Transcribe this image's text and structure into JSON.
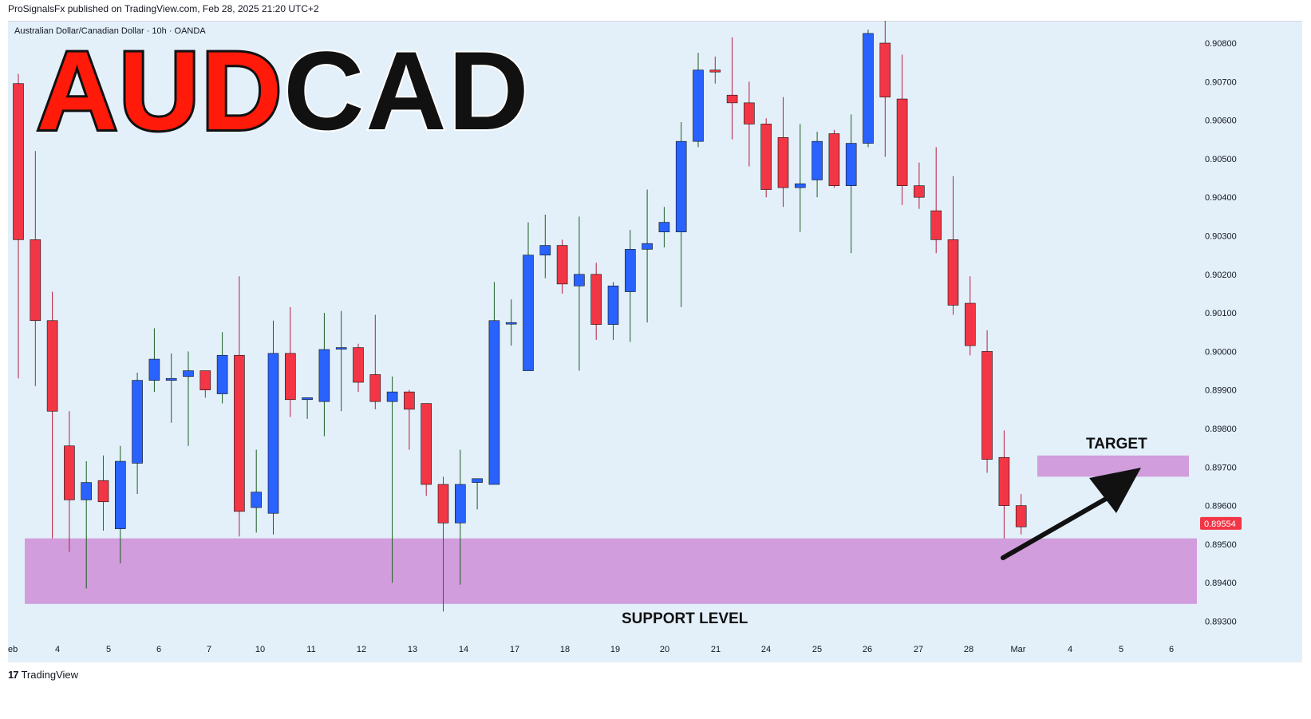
{
  "header": {
    "published_line": "ProSignalsFx published on TradingView.com, Feb 28, 2025 21:20 UTC+2"
  },
  "symbol": {
    "description": "Australian Dollar/Canadian Dollar · 10h · OANDA"
  },
  "title": {
    "part1": "AUD",
    "part2": "CAD"
  },
  "annotations": {
    "target_label": "TARGET",
    "support_label": "SUPPORT LEVEL"
  },
  "footer": {
    "logo": "17",
    "brand": "TradingView"
  },
  "colors": {
    "bull": "#2962ff",
    "bear": "#f23645",
    "zone": "#ce93d8",
    "background": "#e3f0fa",
    "title_red": "#ff1a0a"
  },
  "chart_data": {
    "type": "candlestick",
    "timeframe": "10h",
    "ylim": [
      0.8928,
      0.909
    ],
    "y_ticks": [
      "0.90800",
      "0.90700",
      "0.90600",
      "0.90500",
      "0.90400",
      "0.90300",
      "0.90200",
      "0.90100",
      "0.90000",
      "0.89900",
      "0.89800",
      "0.89700",
      "0.89600",
      "0.89500",
      "0.89400",
      "0.89300"
    ],
    "x_ticks": [
      "eb",
      "4",
      "5",
      "6",
      "7",
      "10",
      "11",
      "12",
      "13",
      "14",
      "17",
      "18",
      "19",
      "20",
      "21",
      "24",
      "25",
      "26",
      "27",
      "28",
      "Mar",
      "4",
      "5",
      "6"
    ],
    "last_price": "0.89554",
    "candles": [
      {
        "o": 0.90695,
        "h": 0.9072,
        "l": 0.8993,
        "c": 0.9029
      },
      {
        "o": 0.9029,
        "h": 0.9052,
        "l": 0.8991,
        "c": 0.9008
      },
      {
        "o": 0.9008,
        "h": 0.90155,
        "l": 0.89515,
        "c": 0.89845
      },
      {
        "o": 0.89755,
        "h": 0.89845,
        "l": 0.8948,
        "c": 0.89615
      },
      {
        "o": 0.89615,
        "h": 0.89715,
        "l": 0.89385,
        "c": 0.8966
      },
      {
        "o": 0.89665,
        "h": 0.8973,
        "l": 0.89535,
        "c": 0.8961
      },
      {
        "o": 0.8954,
        "h": 0.89755,
        "l": 0.8945,
        "c": 0.89715
      },
      {
        "o": 0.8971,
        "h": 0.89945,
        "l": 0.8963,
        "c": 0.89925
      },
      {
        "o": 0.89925,
        "h": 0.9006,
        "l": 0.89895,
        "c": 0.8998
      },
      {
        "o": 0.89925,
        "h": 0.89995,
        "l": 0.89815,
        "c": 0.8993
      },
      {
        "o": 0.89935,
        "h": 0.9,
        "l": 0.89755,
        "c": 0.8995
      },
      {
        "o": 0.8995,
        "h": 0.8995,
        "l": 0.8988,
        "c": 0.899
      },
      {
        "o": 0.8989,
        "h": 0.9005,
        "l": 0.89865,
        "c": 0.8999
      },
      {
        "o": 0.8999,
        "h": 0.90195,
        "l": 0.8952,
        "c": 0.89585
      },
      {
        "o": 0.89595,
        "h": 0.89745,
        "l": 0.8953,
        "c": 0.89635
      },
      {
        "o": 0.8958,
        "h": 0.9008,
        "l": 0.89525,
        "c": 0.89995
      },
      {
        "o": 0.89995,
        "h": 0.90115,
        "l": 0.8983,
        "c": 0.89875
      },
      {
        "o": 0.89875,
        "h": 0.8988,
        "l": 0.89825,
        "c": 0.8988
      },
      {
        "o": 0.8987,
        "h": 0.901,
        "l": 0.8978,
        "c": 0.90005
      },
      {
        "o": 0.9001,
        "h": 0.90105,
        "l": 0.89845,
        "c": 0.9001
      },
      {
        "o": 0.9001,
        "h": 0.9002,
        "l": 0.89895,
        "c": 0.8992
      },
      {
        "o": 0.8994,
        "h": 0.90095,
        "l": 0.8985,
        "c": 0.8987
      },
      {
        "o": 0.8987,
        "h": 0.89935,
        "l": 0.894,
        "c": 0.89895
      },
      {
        "o": 0.89895,
        "h": 0.899,
        "l": 0.89745,
        "c": 0.8985
      },
      {
        "o": 0.89865,
        "h": 0.89865,
        "l": 0.89625,
        "c": 0.89655
      },
      {
        "o": 0.89655,
        "h": 0.89675,
        "l": 0.89325,
        "c": 0.89555
      },
      {
        "o": 0.89555,
        "h": 0.89745,
        "l": 0.89395,
        "c": 0.89655
      },
      {
        "o": 0.8966,
        "h": 0.8966,
        "l": 0.8959,
        "c": 0.8967
      },
      {
        "o": 0.89655,
        "h": 0.9018,
        "l": 0.89655,
        "c": 0.9008
      },
      {
        "o": 0.90075,
        "h": 0.90135,
        "l": 0.90015,
        "c": 0.90075
      },
      {
        "o": 0.8995,
        "h": 0.90335,
        "l": 0.8995,
        "c": 0.9025
      },
      {
        "o": 0.9025,
        "h": 0.90355,
        "l": 0.9019,
        "c": 0.90275
      },
      {
        "o": 0.90275,
        "h": 0.9029,
        "l": 0.9015,
        "c": 0.90175
      },
      {
        "o": 0.9017,
        "h": 0.9035,
        "l": 0.8995,
        "c": 0.902
      },
      {
        "o": 0.902,
        "h": 0.9023,
        "l": 0.9003,
        "c": 0.9007
      },
      {
        "o": 0.9007,
        "h": 0.9018,
        "l": 0.9003,
        "c": 0.9017
      },
      {
        "o": 0.90155,
        "h": 0.90315,
        "l": 0.90025,
        "c": 0.90265
      },
      {
        "o": 0.90265,
        "h": 0.9042,
        "l": 0.90075,
        "c": 0.9028
      },
      {
        "o": 0.9031,
        "h": 0.90375,
        "l": 0.9027,
        "c": 0.90335
      },
      {
        "o": 0.9031,
        "h": 0.90595,
        "l": 0.90115,
        "c": 0.90545
      },
      {
        "o": 0.90545,
        "h": 0.90775,
        "l": 0.9053,
        "c": 0.9073
      },
      {
        "o": 0.9073,
        "h": 0.90765,
        "l": 0.90695,
        "c": 0.90725
      },
      {
        "o": 0.90665,
        "h": 0.90815,
        "l": 0.9055,
        "c": 0.90645
      },
      {
        "o": 0.90645,
        "h": 0.907,
        "l": 0.9048,
        "c": 0.9059
      },
      {
        "o": 0.9059,
        "h": 0.90605,
        "l": 0.904,
        "c": 0.9042
      },
      {
        "o": 0.90555,
        "h": 0.9066,
        "l": 0.90375,
        "c": 0.90425
      },
      {
        "o": 0.90425,
        "h": 0.9059,
        "l": 0.9031,
        "c": 0.90435
      },
      {
        "o": 0.90445,
        "h": 0.9057,
        "l": 0.904,
        "c": 0.90545
      },
      {
        "o": 0.90565,
        "h": 0.90575,
        "l": 0.90425,
        "c": 0.9043
      },
      {
        "o": 0.9043,
        "h": 0.90615,
        "l": 0.90255,
        "c": 0.9054
      },
      {
        "o": 0.9054,
        "h": 0.90835,
        "l": 0.9053,
        "c": 0.90825
      },
      {
        "o": 0.908,
        "h": 0.9087,
        "l": 0.90505,
        "c": 0.9066
      },
      {
        "o": 0.90655,
        "h": 0.9077,
        "l": 0.9038,
        "c": 0.9043
      },
      {
        "o": 0.9043,
        "h": 0.9049,
        "l": 0.9037,
        "c": 0.904
      },
      {
        "o": 0.90365,
        "h": 0.9053,
        "l": 0.90255,
        "c": 0.9029
      },
      {
        "o": 0.9029,
        "h": 0.90455,
        "l": 0.90095,
        "c": 0.9012
      },
      {
        "o": 0.90125,
        "h": 0.90195,
        "l": 0.8999,
        "c": 0.90015
      },
      {
        "o": 0.9,
        "h": 0.90055,
        "l": 0.89685,
        "c": 0.8972
      },
      {
        "o": 0.89725,
        "h": 0.89795,
        "l": 0.89515,
        "c": 0.896
      },
      {
        "o": 0.896,
        "h": 0.8963,
        "l": 0.89525,
        "c": 0.89545
      }
    ],
    "zones": [
      {
        "label": "SUPPORT LEVEL",
        "from": 0.89345,
        "to": 0.89515
      },
      {
        "label": "TARGET",
        "from": 0.89675,
        "to": 0.8973
      }
    ]
  }
}
